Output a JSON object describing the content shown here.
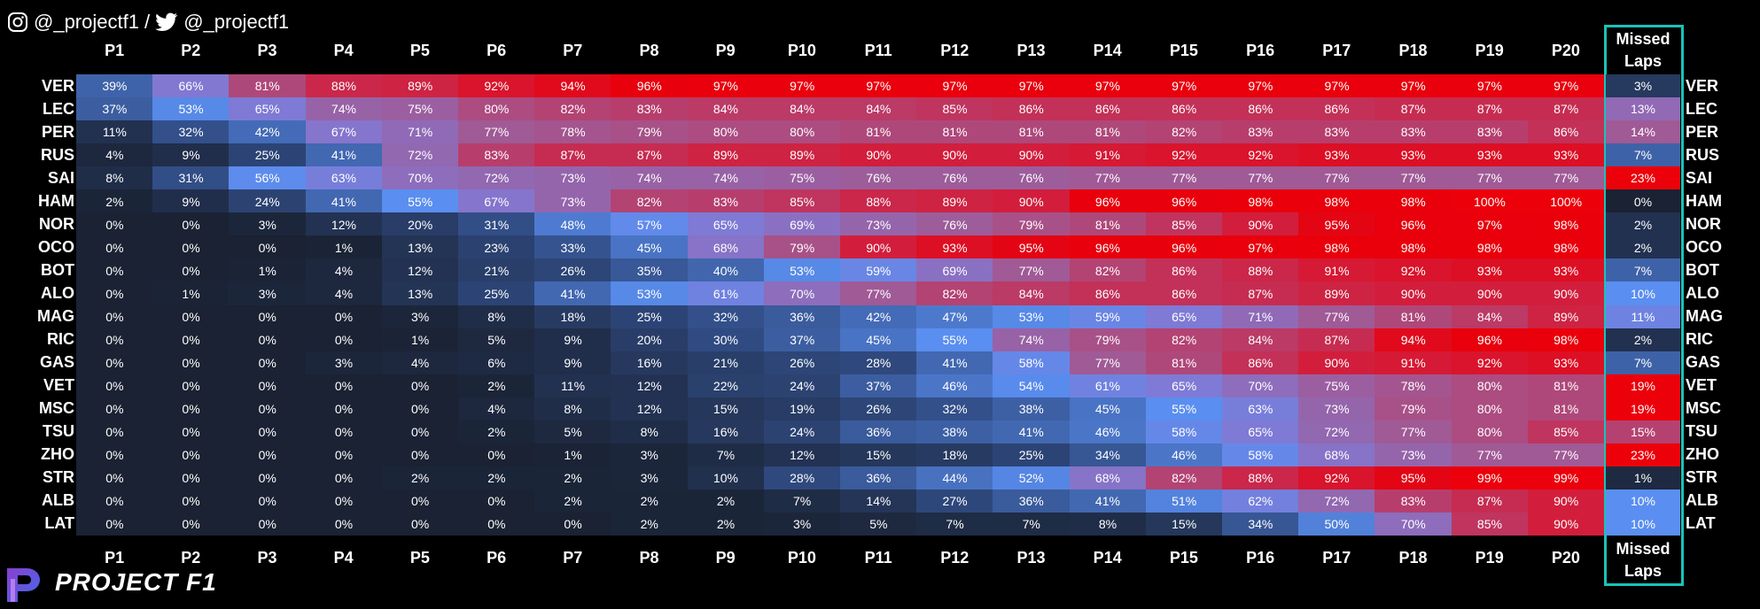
{
  "header": {
    "instagram": "@_projectf1 /",
    "twitter": "@_projectf1"
  },
  "columns": [
    "P1",
    "P2",
    "P3",
    "P4",
    "P5",
    "P6",
    "P7",
    "P8",
    "P9",
    "P10",
    "P11",
    "P12",
    "P13",
    "P14",
    "P15",
    "P16",
    "P17",
    "P18",
    "P19",
    "P20"
  ],
  "missed_header": "Missed Laps",
  "rows": [
    {
      "driver": "VER",
      "values": [
        "39%",
        "66%",
        "81%",
        "88%",
        "89%",
        "92%",
        "94%",
        "96%",
        "97%",
        "97%",
        "97%",
        "97%",
        "97%",
        "97%",
        "97%",
        "97%",
        "97%",
        "97%",
        "97%",
        "97%"
      ],
      "missed": "3%"
    },
    {
      "driver": "LEC",
      "values": [
        "37%",
        "53%",
        "65%",
        "74%",
        "75%",
        "80%",
        "82%",
        "83%",
        "84%",
        "84%",
        "84%",
        "85%",
        "86%",
        "86%",
        "86%",
        "86%",
        "86%",
        "87%",
        "87%",
        "87%"
      ],
      "missed": "13%"
    },
    {
      "driver": "PER",
      "values": [
        "11%",
        "32%",
        "42%",
        "67%",
        "71%",
        "77%",
        "78%",
        "79%",
        "80%",
        "80%",
        "81%",
        "81%",
        "81%",
        "81%",
        "82%",
        "83%",
        "83%",
        "83%",
        "83%",
        "86%"
      ],
      "missed": "14%"
    },
    {
      "driver": "RUS",
      "values": [
        "4%",
        "9%",
        "25%",
        "41%",
        "72%",
        "83%",
        "87%",
        "87%",
        "89%",
        "89%",
        "90%",
        "90%",
        "90%",
        "91%",
        "92%",
        "92%",
        "93%",
        "93%",
        "93%",
        "93%"
      ],
      "missed": "7%"
    },
    {
      "driver": "SAI",
      "values": [
        "8%",
        "31%",
        "56%",
        "63%",
        "70%",
        "72%",
        "73%",
        "74%",
        "74%",
        "75%",
        "76%",
        "76%",
        "76%",
        "77%",
        "77%",
        "77%",
        "77%",
        "77%",
        "77%",
        "77%"
      ],
      "missed": "23%"
    },
    {
      "driver": "HAM",
      "values": [
        "2%",
        "9%",
        "24%",
        "41%",
        "55%",
        "67%",
        "73%",
        "82%",
        "83%",
        "85%",
        "88%",
        "89%",
        "90%",
        "96%",
        "96%",
        "98%",
        "98%",
        "98%",
        "100%",
        "100%"
      ],
      "missed": "0%"
    },
    {
      "driver": "NOR",
      "values": [
        "0%",
        "0%",
        "3%",
        "12%",
        "20%",
        "31%",
        "48%",
        "57%",
        "65%",
        "69%",
        "73%",
        "76%",
        "79%",
        "81%",
        "85%",
        "90%",
        "95%",
        "96%",
        "97%",
        "98%"
      ],
      "missed": "2%"
    },
    {
      "driver": "OCO",
      "values": [
        "0%",
        "0%",
        "0%",
        "1%",
        "13%",
        "23%",
        "33%",
        "45%",
        "68%",
        "79%",
        "90%",
        "93%",
        "95%",
        "96%",
        "96%",
        "97%",
        "98%",
        "98%",
        "98%",
        "98%"
      ],
      "missed": "2%"
    },
    {
      "driver": "BOT",
      "values": [
        "0%",
        "0%",
        "1%",
        "4%",
        "12%",
        "21%",
        "26%",
        "35%",
        "40%",
        "53%",
        "59%",
        "69%",
        "77%",
        "82%",
        "86%",
        "88%",
        "91%",
        "92%",
        "93%",
        "93%"
      ],
      "missed": "7%"
    },
    {
      "driver": "ALO",
      "values": [
        "0%",
        "1%",
        "3%",
        "4%",
        "13%",
        "25%",
        "41%",
        "53%",
        "61%",
        "70%",
        "77%",
        "82%",
        "84%",
        "86%",
        "86%",
        "87%",
        "89%",
        "90%",
        "90%",
        "90%"
      ],
      "missed": "10%"
    },
    {
      "driver": "MAG",
      "values": [
        "0%",
        "0%",
        "0%",
        "0%",
        "3%",
        "8%",
        "18%",
        "25%",
        "32%",
        "36%",
        "42%",
        "47%",
        "53%",
        "59%",
        "65%",
        "71%",
        "77%",
        "81%",
        "84%",
        "89%"
      ],
      "missed": "11%"
    },
    {
      "driver": "RIC",
      "values": [
        "0%",
        "0%",
        "0%",
        "0%",
        "1%",
        "5%",
        "9%",
        "20%",
        "30%",
        "37%",
        "45%",
        "55%",
        "74%",
        "79%",
        "82%",
        "84%",
        "87%",
        "94%",
        "96%",
        "98%"
      ],
      "missed": "2%"
    },
    {
      "driver": "GAS",
      "values": [
        "0%",
        "0%",
        "0%",
        "3%",
        "4%",
        "6%",
        "9%",
        "16%",
        "21%",
        "26%",
        "28%",
        "41%",
        "58%",
        "77%",
        "81%",
        "86%",
        "90%",
        "91%",
        "92%",
        "93%"
      ],
      "missed": "7%"
    },
    {
      "driver": "VET",
      "values": [
        "0%",
        "0%",
        "0%",
        "0%",
        "0%",
        "2%",
        "11%",
        "12%",
        "22%",
        "24%",
        "37%",
        "46%",
        "54%",
        "61%",
        "65%",
        "70%",
        "75%",
        "78%",
        "80%",
        "81%"
      ],
      "missed": "19%"
    },
    {
      "driver": "MSC",
      "values": [
        "0%",
        "0%",
        "0%",
        "0%",
        "0%",
        "4%",
        "8%",
        "12%",
        "15%",
        "19%",
        "26%",
        "32%",
        "38%",
        "45%",
        "55%",
        "63%",
        "73%",
        "79%",
        "80%",
        "81%"
      ],
      "missed": "19%"
    },
    {
      "driver": "TSU",
      "values": [
        "0%",
        "0%",
        "0%",
        "0%",
        "0%",
        "2%",
        "5%",
        "8%",
        "16%",
        "24%",
        "36%",
        "38%",
        "41%",
        "46%",
        "58%",
        "65%",
        "72%",
        "77%",
        "80%",
        "85%"
      ],
      "missed": "15%"
    },
    {
      "driver": "ZHO",
      "values": [
        "0%",
        "0%",
        "0%",
        "0%",
        "0%",
        "0%",
        "1%",
        "3%",
        "7%",
        "12%",
        "15%",
        "18%",
        "25%",
        "34%",
        "46%",
        "58%",
        "68%",
        "73%",
        "77%",
        "77%"
      ],
      "missed": "23%"
    },
    {
      "driver": "STR",
      "values": [
        "0%",
        "0%",
        "0%",
        "0%",
        "2%",
        "2%",
        "2%",
        "3%",
        "10%",
        "28%",
        "36%",
        "44%",
        "52%",
        "68%",
        "82%",
        "88%",
        "92%",
        "95%",
        "99%",
        "99%"
      ],
      "missed": "1%"
    },
    {
      "driver": "ALB",
      "values": [
        "0%",
        "0%",
        "0%",
        "0%",
        "0%",
        "0%",
        "2%",
        "2%",
        "2%",
        "7%",
        "14%",
        "27%",
        "36%",
        "41%",
        "51%",
        "62%",
        "72%",
        "83%",
        "87%",
        "90%"
      ],
      "missed": "10%"
    },
    {
      "driver": "LAT",
      "values": [
        "0%",
        "0%",
        "0%",
        "0%",
        "0%",
        "0%",
        "0%",
        "2%",
        "2%",
        "3%",
        "5%",
        "7%",
        "7%",
        "8%",
        "15%",
        "34%",
        "50%",
        "70%",
        "85%",
        "90%"
      ],
      "missed": "10%"
    }
  ],
  "footer": {
    "logo": "PROJECT F1"
  }
}
